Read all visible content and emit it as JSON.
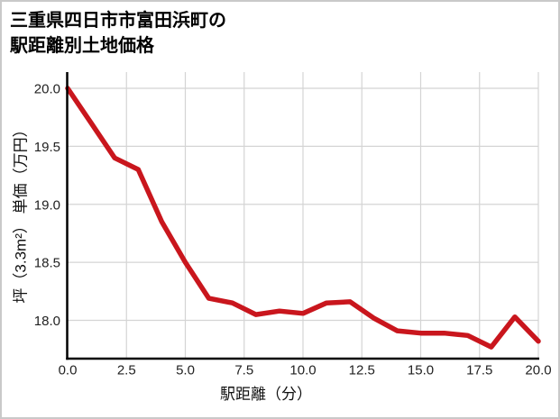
{
  "title": {
    "line1": "三重県四日市市富田浜町の",
    "line2": "駅距離別土地価格"
  },
  "colors": {
    "line": "#c9161d",
    "grid": "#d4d4d4",
    "spine": "#000000",
    "tick_text": "#222222",
    "background": "#ffffff",
    "frame_border": "#c9c9c9"
  },
  "chart_data": {
    "type": "line",
    "title": "三重県四日市市富田浜町の駅距離別土地価格",
    "xlabel": "駅距離（分）",
    "ylabel": "坪（3.3m²） 単価（万円）",
    "x": [
      0,
      1,
      2,
      3,
      4,
      5,
      6,
      7,
      8,
      9,
      10,
      11,
      12,
      13,
      14,
      15,
      16,
      17,
      18,
      19,
      20
    ],
    "values": [
      20.0,
      19.7,
      19.4,
      19.3,
      18.85,
      18.5,
      18.19,
      18.15,
      18.05,
      18.08,
      18.06,
      18.15,
      18.16,
      18.02,
      17.91,
      17.89,
      17.89,
      17.87,
      17.77,
      18.03,
      17.82
    ],
    "xlim": [
      0,
      20
    ],
    "ylim": [
      17.67,
      20.14
    ],
    "xticks": [
      0,
      2.5,
      5,
      7.5,
      10,
      12.5,
      15,
      17.5,
      20
    ],
    "xtick_labels": [
      "0.0",
      "2.5",
      "5.0",
      "7.5",
      "10.0",
      "12.5",
      "15.0",
      "17.5",
      "20.0"
    ],
    "yticks": [
      18.0,
      18.5,
      19.0,
      19.5,
      20.0
    ],
    "ytick_labels": [
      "18.0",
      "18.5",
      "19.0",
      "19.5",
      "20.0"
    ],
    "grid": true,
    "legend": "none",
    "series_name": "土地価格"
  }
}
